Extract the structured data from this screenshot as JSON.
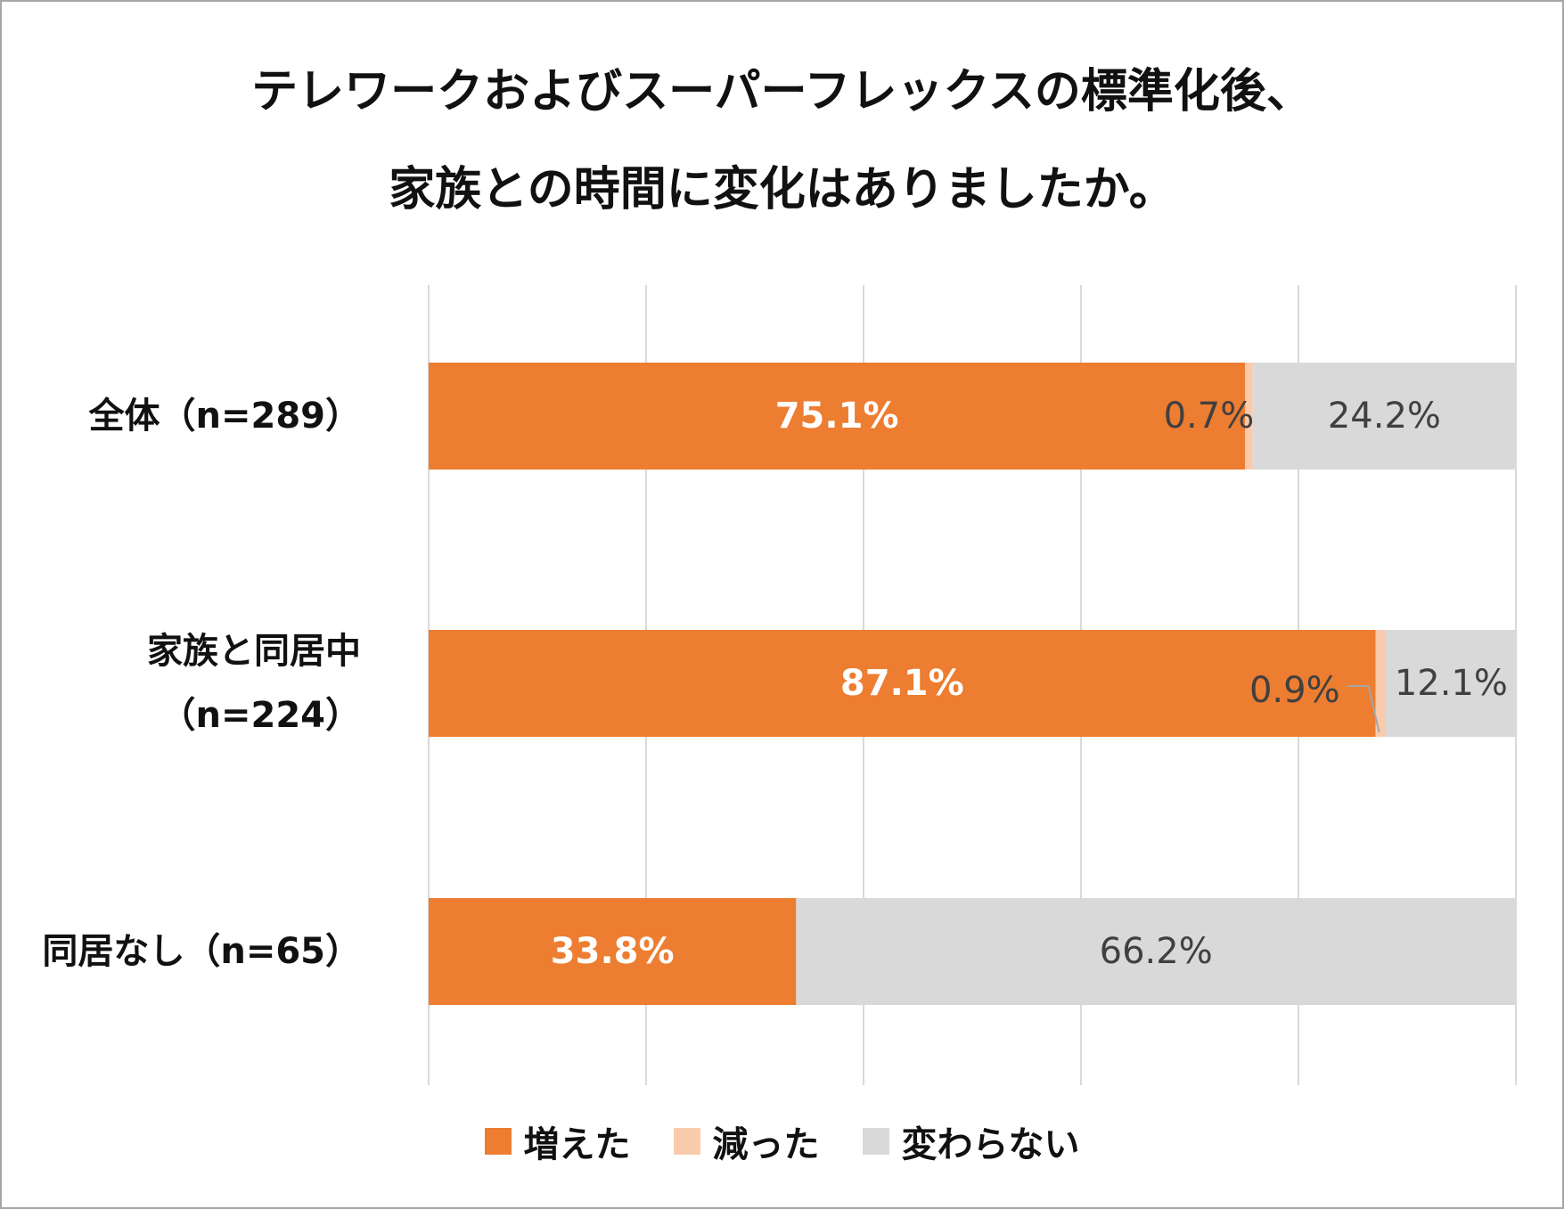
{
  "chart_data": {
    "type": "bar",
    "orientation": "horizontal",
    "stacked": true,
    "title": [
      "テレワークおよびスーパーフレックスの標準化後、",
      "家族との時間に変化はありましたか。"
    ],
    "categories": [
      [
        "全体（n=289）"
      ],
      [
        "家族と同居中",
        "（n=224）"
      ],
      [
        "同居なし（n=65）"
      ]
    ],
    "xlim": [
      0,
      100
    ],
    "x_gridlines": [
      0,
      20,
      40,
      60,
      80,
      100
    ],
    "series": [
      {
        "name": "増えた",
        "color": "#ed7d31",
        "label_color": "#ffffff",
        "values": [
          75.1,
          87.1,
          33.8
        ],
        "labels": [
          "75.1%",
          "87.1%",
          "33.8%"
        ]
      },
      {
        "name": "減った",
        "color": "#f8cbad",
        "label_color": "#404040",
        "values": [
          0.7,
          0.9,
          0
        ],
        "labels": [
          "0.7%",
          "0.9%",
          ""
        ]
      },
      {
        "name": "変わらない",
        "color": "#d9d9d9",
        "label_color": "#404040",
        "values": [
          24.2,
          12.1,
          66.2
        ],
        "labels": [
          "24.2%",
          "12.1%",
          "66.2%"
        ]
      }
    ],
    "grid": true,
    "legend_position": "bottom"
  }
}
